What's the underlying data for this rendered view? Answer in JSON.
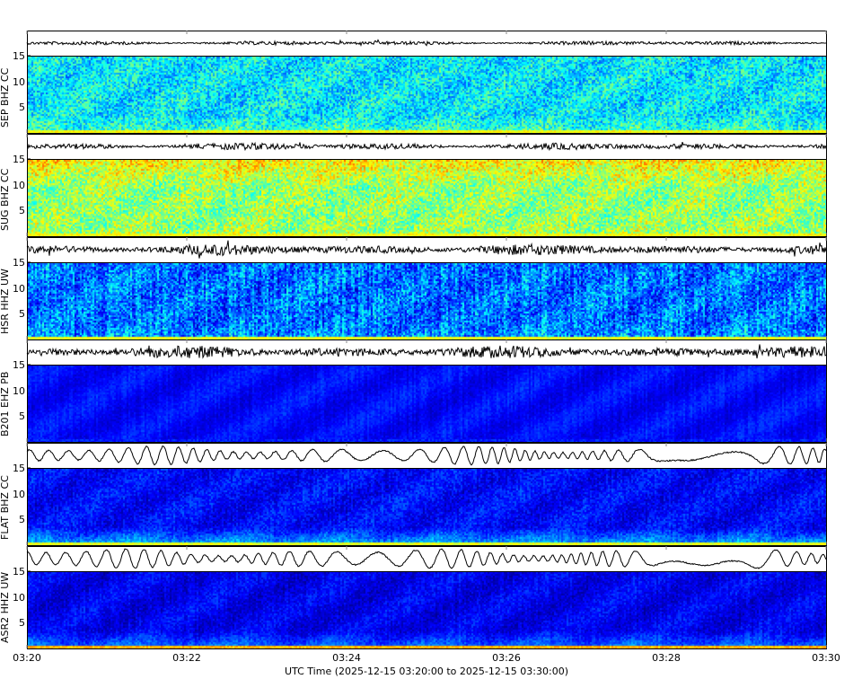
{
  "chart_data": {
    "type": "heatmap",
    "subtype": "waveform + spectrogram panels",
    "xlabel": "UTC Time (2025-12-15 03:20:00 to 2025-12-15 03:30:00)",
    "x_ticks": [
      "03:20",
      "03:22",
      "03:24",
      "03:26",
      "03:28",
      "03:30"
    ],
    "xlim": [
      "2025-12-15 03:20:00",
      "2025-12-15 03:30:00"
    ],
    "ylim": [
      0,
      15
    ],
    "y_ticks": [
      "5",
      "10",
      "15"
    ],
    "colormap": "jet",
    "grid": false,
    "panels": [
      {
        "label": "SEP BHZ CC"
      },
      {
        "label": "SUG BHZ CC"
      },
      {
        "label": "HSR HHZ UW"
      },
      {
        "label": "B201 EHZ PB"
      },
      {
        "label": "FLAT BHZ CC"
      },
      {
        "label": "ASR2 HHZ UW"
      }
    ]
  }
}
